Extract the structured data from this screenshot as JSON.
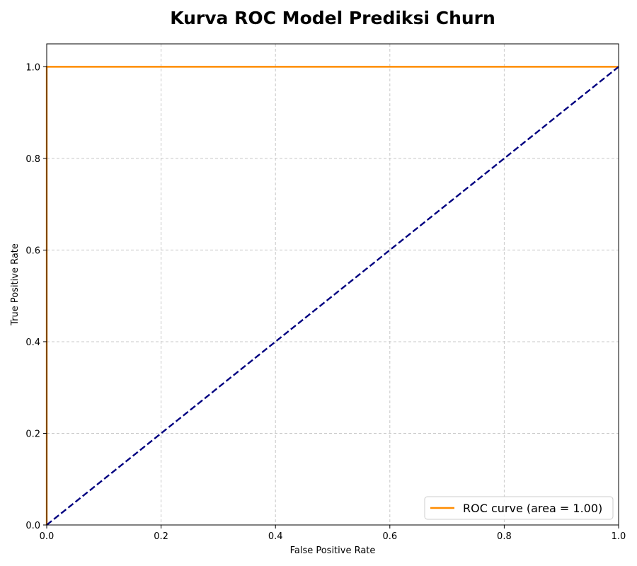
{
  "chart_data": {
    "type": "line",
    "title": "Kurva ROC Model Prediksi Churn",
    "xlabel": "False Positive Rate",
    "ylabel": "True Positive Rate",
    "xlim": [
      0.0,
      1.0
    ],
    "ylim": [
      0.0,
      1.05
    ],
    "xticks": [
      0.0,
      0.2,
      0.4,
      0.6,
      0.8,
      1.0
    ],
    "yticks": [
      0.0,
      0.2,
      0.4,
      0.6,
      0.8,
      1.0
    ],
    "xtick_labels": [
      "0.0",
      "0.2",
      "0.4",
      "0.6",
      "0.8",
      "1.0"
    ],
    "ytick_labels": [
      "0.0",
      "0.2",
      "0.4",
      "0.6",
      "0.8",
      "1.0"
    ],
    "grid": true,
    "legend_position": "lower-right",
    "series": [
      {
        "name": "ROC curve (area = 1.00)",
        "x": [
          0.0,
          0.0,
          1.0
        ],
        "y": [
          0.0,
          1.0,
          1.0
        ],
        "color": "#ff8c00",
        "style": "solid"
      },
      {
        "name": "",
        "x": [
          0.0,
          1.0
        ],
        "y": [
          0.0,
          1.0
        ],
        "color": "#000080",
        "style": "dashed"
      }
    ],
    "legend_entries": [
      "ROC curve (area = 1.00)"
    ]
  }
}
